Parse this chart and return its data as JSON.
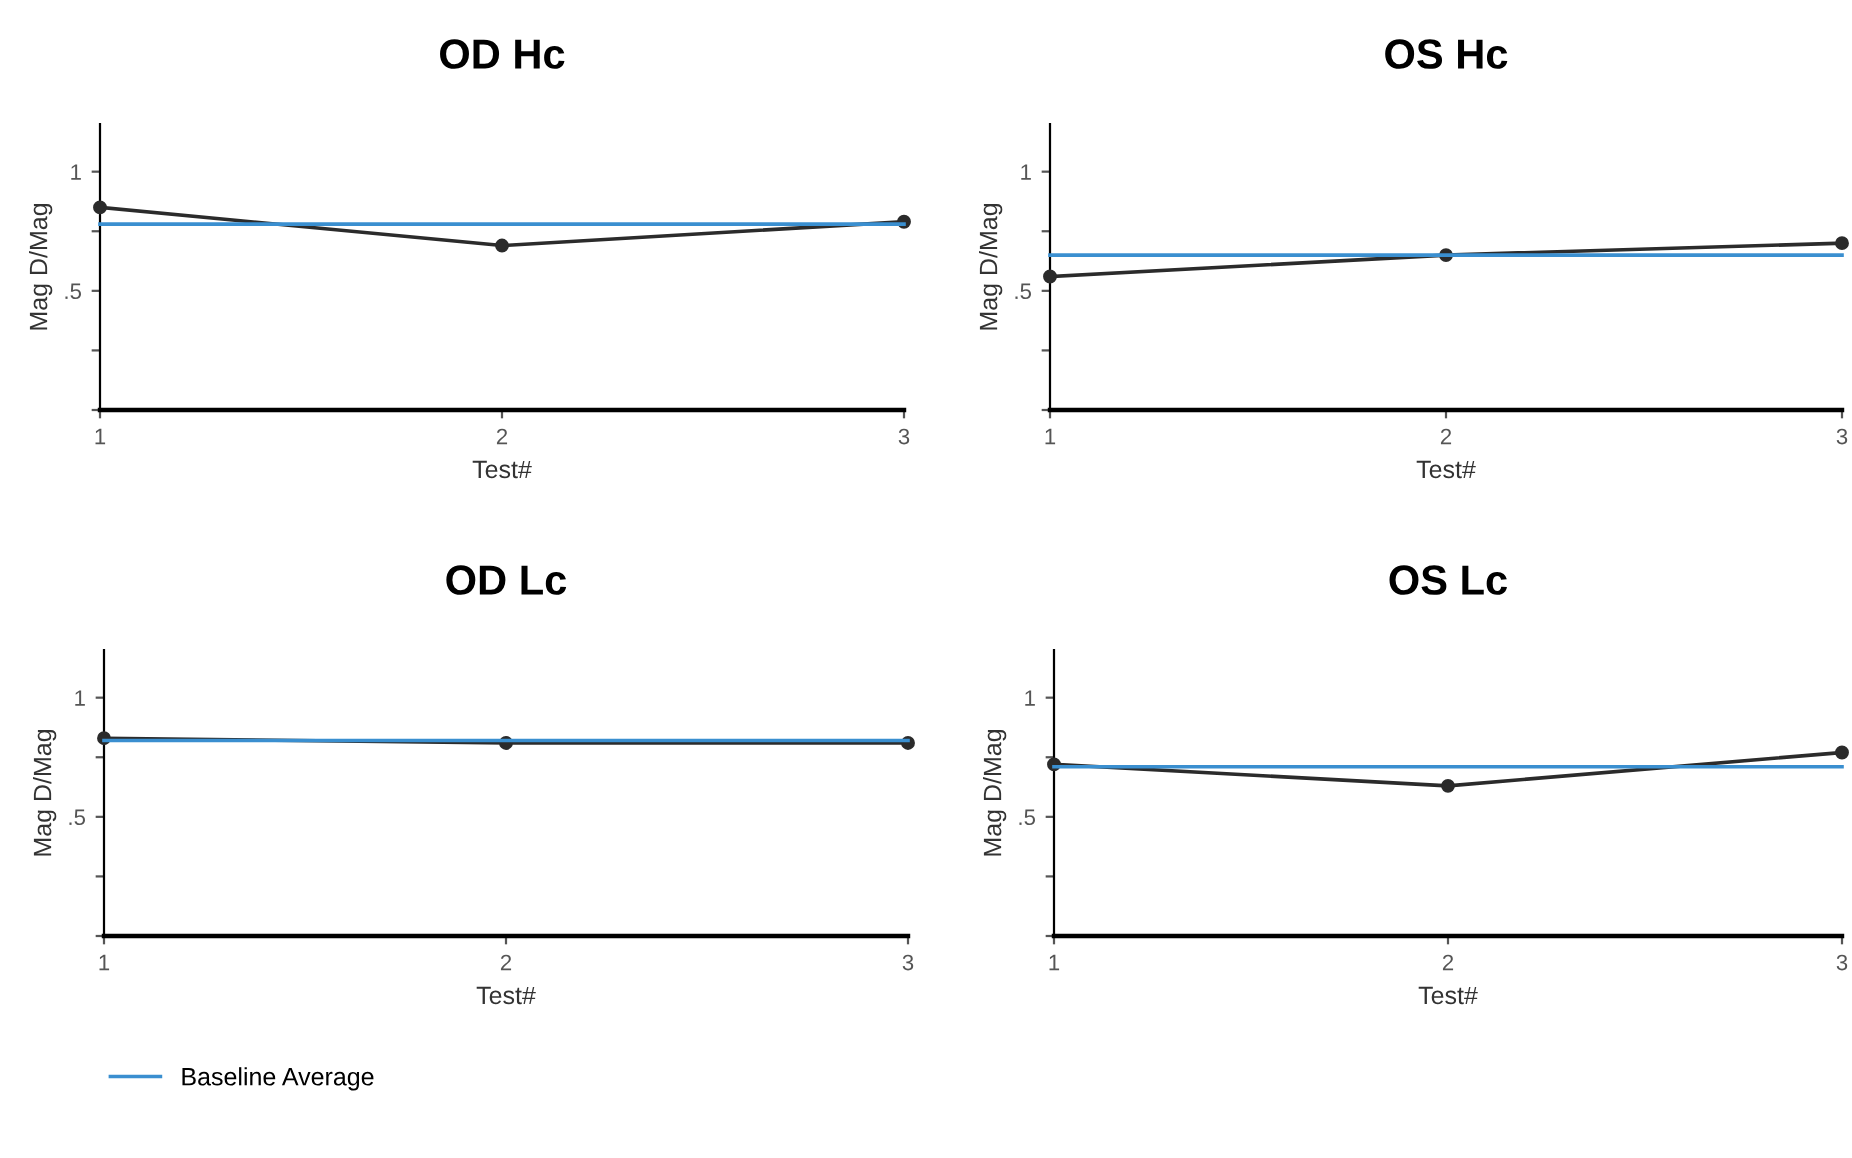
{
  "chart_data": [
    {
      "type": "line",
      "title": "OD Hc",
      "xlabel": "Test#",
      "ylabel": "Mag D/Mag",
      "x": [
        1,
        2,
        3
      ],
      "xlim": [
        1,
        3
      ],
      "xticks": [
        1,
        2,
        3
      ],
      "ylim": [
        0,
        1.2
      ],
      "yticks": [
        {
          "value": 0,
          "label": null
        },
        {
          "value": 0.25,
          "label": null
        },
        {
          "value": 0.5,
          "label": ".5"
        },
        {
          "value": 0.75,
          "label": null
        },
        {
          "value": 1,
          "label": "1"
        }
      ],
      "grid": false,
      "legend": false,
      "series": [
        {
          "color": "#2b2b2b",
          "marker": "circle",
          "values": [
            0.85,
            0.69,
            0.79
          ]
        },
        {
          "color": "#3a8fd0",
          "marker": "none",
          "values": [
            0.78,
            0.78,
            0.78
          ]
        }
      ]
    },
    {
      "type": "line",
      "title": "OS Hc",
      "xlabel": "Test#",
      "ylabel": "Mag D/Mag",
      "x": [
        1,
        2,
        3
      ],
      "xlim": [
        1,
        3
      ],
      "xticks": [
        1,
        2,
        3
      ],
      "ylim": [
        0,
        1.2
      ],
      "yticks": [
        {
          "value": 0,
          "label": null
        },
        {
          "value": 0.25,
          "label": null
        },
        {
          "value": 0.5,
          "label": ".5"
        },
        {
          "value": 0.75,
          "label": null
        },
        {
          "value": 1,
          "label": "1"
        }
      ],
      "grid": false,
      "legend": false,
      "series": [
        {
          "color": "#2b2b2b",
          "marker": "circle",
          "values": [
            0.56,
            0.65,
            0.7
          ]
        },
        {
          "color": "#3a8fd0",
          "marker": "none",
          "values": [
            0.65,
            0.65,
            0.65
          ]
        }
      ]
    },
    {
      "type": "line",
      "title": "OD Lc",
      "xlabel": "Test#",
      "ylabel": "Mag D/Mag",
      "x": [
        1,
        2,
        3
      ],
      "xlim": [
        1,
        3
      ],
      "xticks": [
        1,
        2,
        3
      ],
      "ylim": [
        0,
        1.2
      ],
      "yticks": [
        {
          "value": 0,
          "label": null
        },
        {
          "value": 0.25,
          "label": null
        },
        {
          "value": 0.5,
          "label": ".5"
        },
        {
          "value": 0.75,
          "label": null
        },
        {
          "value": 1,
          "label": "1"
        }
      ],
      "grid": false,
      "legend": "bottom left",
      "series": [
        {
          "color": "#2b2b2b",
          "marker": "circle",
          "values": [
            0.83,
            0.81,
            0.81
          ]
        },
        {
          "name": "Baseline Average",
          "color": "#3a8fd0",
          "marker": "none",
          "values": [
            0.82,
            0.82,
            0.82
          ]
        }
      ]
    },
    {
      "type": "line",
      "title": "OS Lc",
      "xlabel": "Test#",
      "ylabel": "Mag D/Mag",
      "x": [
        1,
        2,
        3
      ],
      "xlim": [
        1,
        3
      ],
      "xticks": [
        1,
        2,
        3
      ],
      "ylim": [
        0,
        1.2
      ],
      "yticks": [
        {
          "value": 0,
          "label": null
        },
        {
          "value": 0.25,
          "label": null
        },
        {
          "value": 0.5,
          "label": ".5"
        },
        {
          "value": 0.75,
          "label": null
        },
        {
          "value": 1,
          "label": "1"
        }
      ],
      "grid": false,
      "legend": false,
      "series": [
        {
          "color": "#2b2b2b",
          "marker": "circle",
          "values": [
            0.72,
            0.63,
            0.77
          ]
        },
        {
          "color": "#3a8fd0",
          "marker": "none",
          "values": [
            0.71,
            0.71,
            0.71
          ]
        }
      ]
    }
  ]
}
